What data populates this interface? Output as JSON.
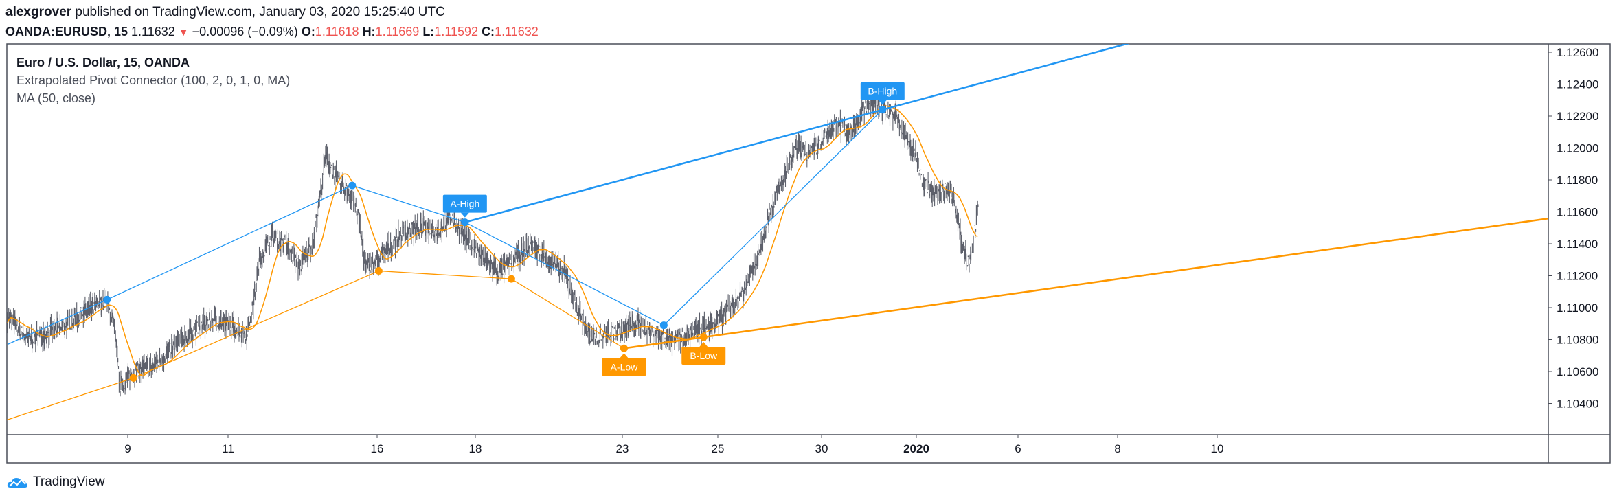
{
  "header": {
    "author": "alexgrover",
    "published": "published on TradingView.com, January 03, 2020 15:25:40 UTC",
    "symbol": "OANDA:EURUSD, 15",
    "last": "1.11632",
    "change": "−0.00096 (−0.09%)",
    "o_label": "O:",
    "o_value": "1.11618",
    "h_label": "H:",
    "h_value": "1.11669",
    "l_label": "L:",
    "l_value": "1.11592",
    "c_label": "C:",
    "c_value": "1.11632"
  },
  "legend": {
    "series": "Euro / U.S. Dollar, 15, OANDA",
    "indicator1": "Extrapolated Pivot Connector (100, 2, 0, 1, 0, MA)",
    "indicator2": "MA (50, close)"
  },
  "footer": {
    "brand": "TradingView"
  },
  "colors": {
    "blue": "#2196f3",
    "orange": "#ff9800",
    "candle": "#5d606b",
    "red": "#ef5350"
  },
  "chart_data": {
    "type": "line",
    "instrument": "EURUSD",
    "x_ticks": [
      "9",
      "11",
      "16",
      "18",
      "23",
      "25",
      "30",
      "2020",
      "6",
      "8",
      "10"
    ],
    "y_ticks": [
      "1.12600",
      "1.12400",
      "1.12200",
      "1.12000",
      "1.11800",
      "1.11600",
      "1.11400",
      "1.11200",
      "1.11000",
      "1.10800",
      "1.10600",
      "1.10400"
    ],
    "ylim": [
      1.1023,
      1.1268
    ],
    "price_path": [
      [
        0,
        1.1095
      ],
      [
        3,
        1.108
      ],
      [
        8,
        1.1087
      ],
      [
        12,
        1.1098
      ],
      [
        15,
        1.1104
      ],
      [
        16,
        1.109
      ],
      [
        17,
        1.105
      ],
      [
        19,
        1.106
      ],
      [
        22,
        1.1063
      ],
      [
        25,
        1.1075
      ],
      [
        28,
        1.1085
      ],
      [
        31,
        1.1093
      ],
      [
        34,
        1.1088
      ],
      [
        36,
        1.1083
      ],
      [
        37,
        1.11
      ],
      [
        38,
        1.113
      ],
      [
        40,
        1.1145
      ],
      [
        42,
        1.114
      ],
      [
        44,
        1.1125
      ],
      [
        46,
        1.114
      ],
      [
        47,
        1.1165
      ],
      [
        48,
        1.1195
      ],
      [
        50,
        1.1178
      ],
      [
        52,
        1.117
      ],
      [
        53,
        1.1155
      ],
      [
        54,
        1.1125
      ],
      [
        56,
        1.113
      ],
      [
        58,
        1.114
      ],
      [
        60,
        1.1148
      ],
      [
        63,
        1.115
      ],
      [
        65,
        1.1148
      ],
      [
        67,
        1.1157
      ],
      [
        68,
        1.115
      ],
      [
        70,
        1.114
      ],
      [
        72,
        1.113
      ],
      [
        74,
        1.1122
      ],
      [
        76,
        1.1128
      ],
      [
        79,
        1.114
      ],
      [
        82,
        1.1128
      ],
      [
        84,
        1.1122
      ],
      [
        86,
        1.11
      ],
      [
        88,
        1.108
      ],
      [
        90,
        1.1083
      ],
      [
        92,
        1.1085
      ],
      [
        95,
        1.109
      ],
      [
        97,
        1.1085
      ],
      [
        100,
        1.108
      ],
      [
        102,
        1.1082
      ],
      [
        105,
        1.1087
      ],
      [
        107,
        1.109
      ],
      [
        109,
        1.11
      ],
      [
        111,
        1.111
      ],
      [
        113,
        1.113
      ],
      [
        115,
        1.116
      ],
      [
        117,
        1.118
      ],
      [
        119,
        1.12
      ],
      [
        121,
        1.1195
      ],
      [
        123,
        1.1205
      ],
      [
        125,
        1.1215
      ],
      [
        127,
        1.121
      ],
      [
        129,
        1.1222
      ],
      [
        130,
        1.123
      ],
      [
        132,
        1.1225
      ],
      [
        134,
        1.122
      ],
      [
        135,
        1.121
      ],
      [
        137,
        1.1195
      ],
      [
        138,
        1.118
      ],
      [
        140,
        1.117
      ],
      [
        142,
        1.1175
      ],
      [
        143,
        1.1165
      ],
      [
        144,
        1.114
      ],
      [
        145,
        1.1127
      ],
      [
        146,
        1.115
      ],
      [
        146.5,
        1.1163
      ]
    ],
    "series": [
      {
        "name": "MA (50, close)",
        "color": "#ff9800"
      },
      {
        "name": "Extrapolated Pivot Connector",
        "color": "#2196f3"
      }
    ],
    "pivot_highs": [
      [
        15,
        1.1105
      ],
      [
        52,
        1.11765
      ],
      [
        69,
        1.11535
      ],
      [
        99,
        1.1089
      ],
      [
        132,
        1.1224
      ]
    ],
    "pivot_lows": [
      [
        19,
        1.1056
      ],
      [
        56,
        1.1123
      ],
      [
        76,
        1.1118
      ],
      [
        93,
        1.10745
      ],
      [
        105,
        1.10815
      ]
    ],
    "annotations": [
      {
        "label": "A-High",
        "x": 69,
        "y": 1.11535,
        "color": "#2196f3"
      },
      {
        "label": "B-High",
        "x": 132,
        "y": 1.1224,
        "color": "#2196f3"
      },
      {
        "label": "A-Low",
        "x": 93,
        "y": 1.10745,
        "color": "#ff9800"
      },
      {
        "label": "B-Low",
        "x": 105,
        "y": 1.10815,
        "color": "#ff9800"
      }
    ],
    "extrapolated_lines": [
      {
        "color": "#2196f3",
        "from": [
          69,
          1.11535
        ],
        "to": [
          132,
          1.1224
        ]
      },
      {
        "color": "#ff9800",
        "from": [
          93,
          1.10745
        ],
        "to": [
          105,
          1.10815
        ]
      }
    ],
    "grid": false,
    "legend_position": "top-left"
  }
}
